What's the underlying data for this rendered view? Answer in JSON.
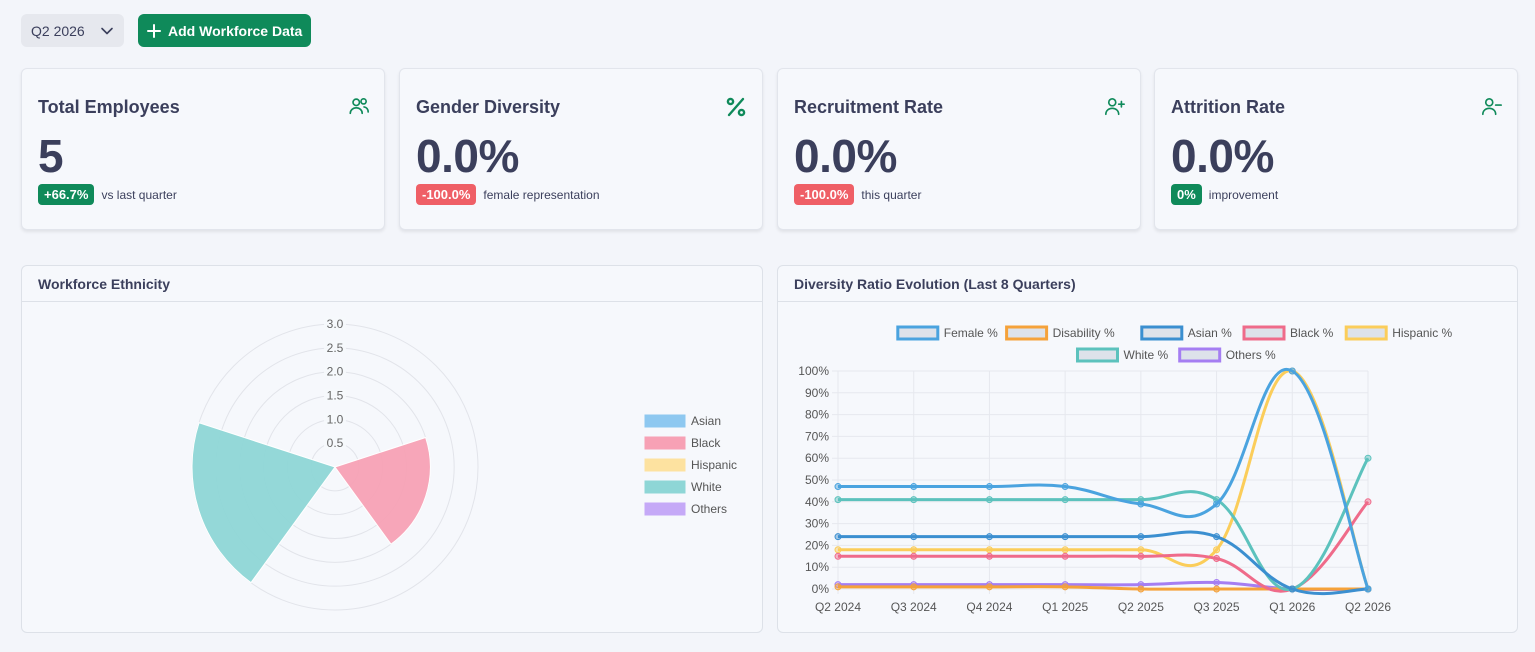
{
  "toolbar": {
    "quarter": "Q2 2026",
    "add_label": "Add Workforce Data"
  },
  "kpis": [
    {
      "title": "Total Employees",
      "value": "5",
      "badge": "+66.7%",
      "note": "vs last quarter",
      "icon": "users-icon",
      "badge_color": "#0f8a5a"
    },
    {
      "title": "Gender Diversity",
      "value": "0.0%",
      "badge": "-100.0%",
      "note": "female representation",
      "icon": "percent-icon",
      "badge_color": "#ef5f66"
    },
    {
      "title": "Recruitment Rate",
      "value": "0.0%",
      "badge": "-100.0%",
      "note": "this quarter",
      "icon": "user-plus-icon",
      "badge_color": "#ef5f66"
    },
    {
      "title": "Attrition Rate",
      "value": "0.0%",
      "badge": "0%",
      "note": "improvement",
      "icon": "user-minus-icon",
      "badge_color": "#0f8a5a"
    }
  ],
  "ethnicity_panel": {
    "title": "Workforce Ethnicity"
  },
  "evolution_panel": {
    "title": "Diversity Ratio Evolution (Last 8 Quarters)"
  },
  "chart_data": [
    {
      "type": "polarArea",
      "title": "",
      "categories": [
        "Asian",
        "Black",
        "Hispanic",
        "White",
        "Others"
      ],
      "values": [
        0,
        2,
        0,
        3,
        0
      ],
      "colors": [
        "#8ec8f0",
        "#f7a1b5",
        "#fde2a0",
        "#8ed6d6",
        "#c5a9f7"
      ],
      "r_ticks": [
        "0.5",
        "1.0",
        "1.5",
        "2.0",
        "2.5",
        "3.0"
      ],
      "r_max": 3.0,
      "legend": "right"
    },
    {
      "type": "line",
      "title": "",
      "categories": [
        "Q2 2024",
        "Q3 2024",
        "Q4 2024",
        "Q1 2025",
        "Q2 2025",
        "Q3 2025",
        "Q1 2026",
        "Q2 2026"
      ],
      "y_ticks": [
        "0%",
        "10%",
        "20%",
        "30%",
        "40%",
        "50%",
        "60%",
        "70%",
        "80%",
        "90%",
        "100%"
      ],
      "ylim": [
        0,
        100
      ],
      "legend": "top",
      "series": [
        {
          "name": "Female %",
          "color": "#4aa3df",
          "values": [
            47,
            47,
            47,
            47,
            39,
            39,
            100,
            0
          ]
        },
        {
          "name": "Disability %",
          "color": "#f5a23a",
          "values": [
            1,
            1,
            1,
            1,
            0,
            0,
            0,
            0
          ]
        },
        {
          "name": "Asian %",
          "color": "#3b8fd0",
          "values": [
            24,
            24,
            24,
            24,
            24,
            24,
            0,
            0
          ]
        },
        {
          "name": "Black %",
          "color": "#ef6b8a",
          "values": [
            15,
            15,
            15,
            15,
            15,
            14,
            0,
            40
          ]
        },
        {
          "name": "Hispanic %",
          "color": "#fbcd5a",
          "values": [
            18,
            18,
            18,
            18,
            18,
            18,
            100,
            0
          ]
        },
        {
          "name": "White %",
          "color": "#5cc2bd",
          "values": [
            41,
            41,
            41,
            41,
            41,
            41,
            0,
            60
          ]
        },
        {
          "name": "Others %",
          "color": "#a57ef2",
          "values": [
            2,
            2,
            2,
            2,
            2,
            3,
            0,
            0
          ]
        }
      ]
    }
  ]
}
